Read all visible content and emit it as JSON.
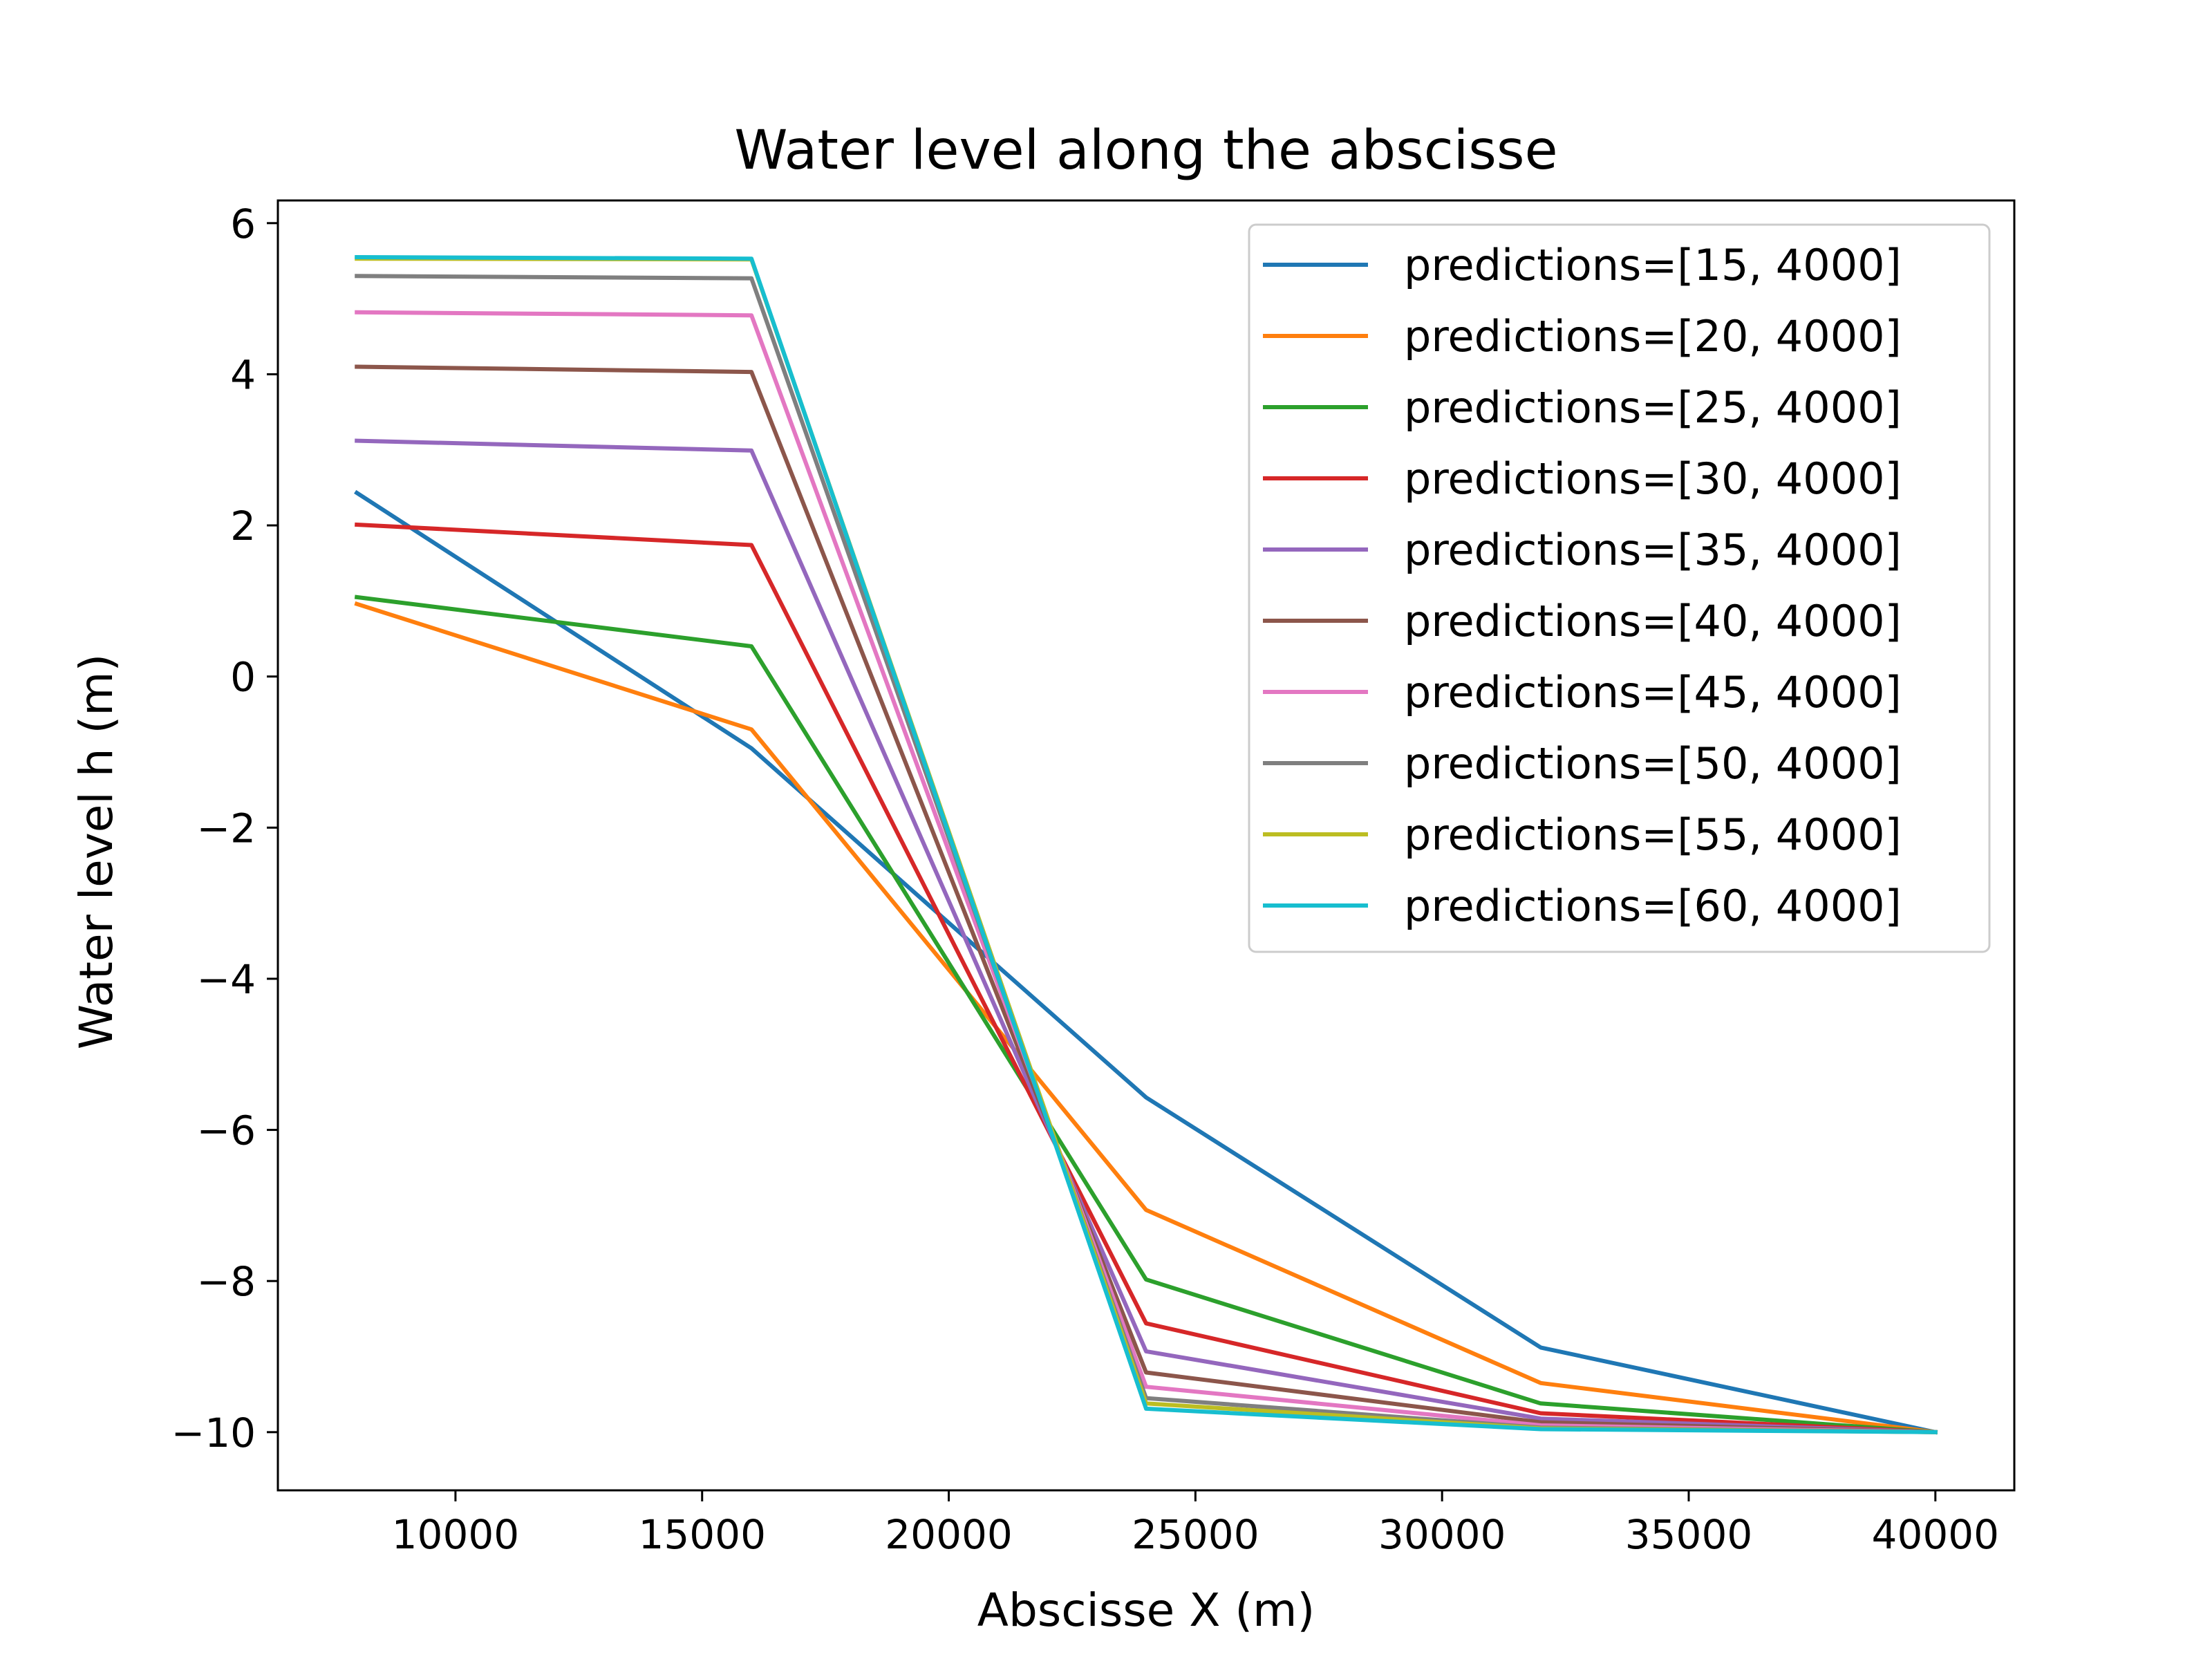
{
  "chart_data": {
    "type": "line",
    "title": "Water level along the abscisse",
    "xlabel": "Abscisse X (m)",
    "ylabel": "Water level h (m)",
    "xlim": [
      6400,
      41600
    ],
    "ylim": [
      -10.77,
      6.3
    ],
    "xticks": [
      10000,
      15000,
      20000,
      25000,
      30000,
      35000,
      40000
    ],
    "xtick_labels": [
      "10000",
      "15000",
      "20000",
      "25000",
      "30000",
      "35000",
      "40000"
    ],
    "yticks": [
      6,
      4,
      2,
      0,
      -2,
      -4,
      -6,
      -8,
      -10
    ],
    "ytick_labels": [
      "6",
      "4",
      "2",
      "0",
      "−2",
      "−4",
      "−6",
      "−8",
      "−10"
    ],
    "grid": false,
    "legend_position": "top-right",
    "x": [
      8000,
      16000,
      24000,
      32000,
      40000
    ],
    "series": [
      {
        "name": "predictions=[15, 4000]",
        "color": "#1f77b4",
        "values": [
          2.43,
          -0.95,
          -5.57,
          -8.88,
          -10.0
        ]
      },
      {
        "name": "predictions=[20, 4000]",
        "color": "#ff7f0e",
        "values": [
          0.96,
          -0.7,
          -7.06,
          -9.35,
          -10.0
        ]
      },
      {
        "name": "predictions=[25, 4000]",
        "color": "#2ca02c",
        "values": [
          1.05,
          0.4,
          -7.98,
          -9.62,
          -10.0
        ]
      },
      {
        "name": "predictions=[30, 4000]",
        "color": "#d62728",
        "values": [
          2.01,
          1.74,
          -8.56,
          -9.75,
          -10.0
        ]
      },
      {
        "name": "predictions=[35, 4000]",
        "color": "#9467bd",
        "values": [
          3.12,
          2.99,
          -8.93,
          -9.82,
          -10.0
        ]
      },
      {
        "name": "predictions=[40, 4000]",
        "color": "#8c564b",
        "values": [
          4.1,
          4.03,
          -9.21,
          -9.87,
          -10.0
        ]
      },
      {
        "name": "predictions=[45, 4000]",
        "color": "#e377c2",
        "values": [
          4.82,
          4.78,
          -9.4,
          -9.91,
          -10.0
        ]
      },
      {
        "name": "predictions=[50, 4000]",
        "color": "#7f7f7f",
        "values": [
          5.3,
          5.27,
          -9.55,
          -9.94,
          -10.0
        ]
      },
      {
        "name": "predictions=[55, 4000]",
        "color": "#bcbd22",
        "values": [
          5.53,
          5.52,
          -9.62,
          -9.95,
          -10.0
        ]
      },
      {
        "name": "predictions=[60, 4000]",
        "color": "#17becf",
        "values": [
          5.55,
          5.53,
          -9.69,
          -9.96,
          -10.0
        ]
      }
    ]
  }
}
